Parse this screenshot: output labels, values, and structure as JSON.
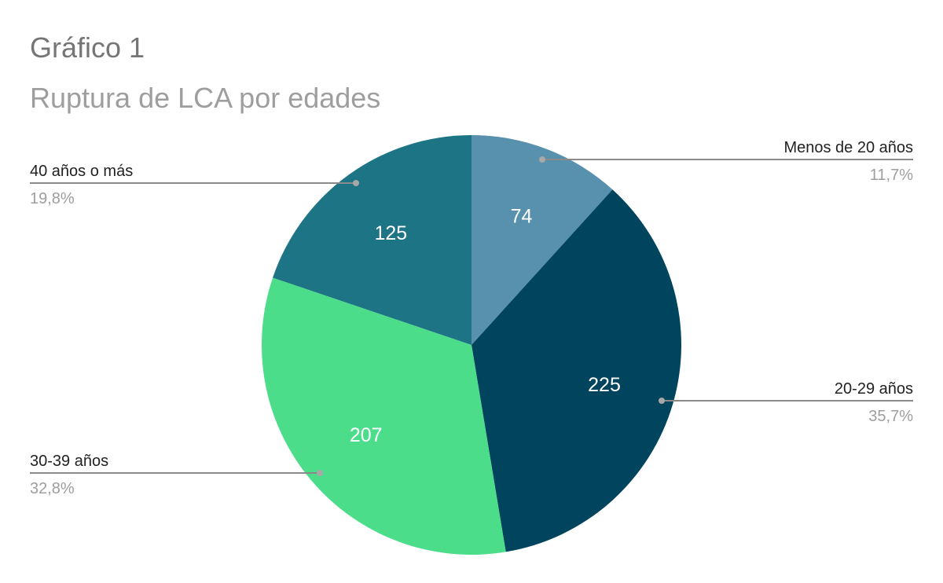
{
  "chart_data": {
    "type": "pie",
    "title": "Gráfico 1",
    "subtitle": "Ruptura de LCA por edades",
    "slices": [
      {
        "label": "Menos de 20 años",
        "value": 74,
        "percent": "11,7%",
        "color": "#5891ae"
      },
      {
        "label": "20-29 años",
        "value": 225,
        "percent": "35,7%",
        "color": "#00445e"
      },
      {
        "label": "30-39 años",
        "value": 207,
        "percent": "32,8%",
        "color": "#4cdd8b"
      },
      {
        "label": "40 años o más",
        "value": 125,
        "percent": "19,8%",
        "color": "#1c7485"
      }
    ],
    "legend": "outside labels with leader lines"
  }
}
